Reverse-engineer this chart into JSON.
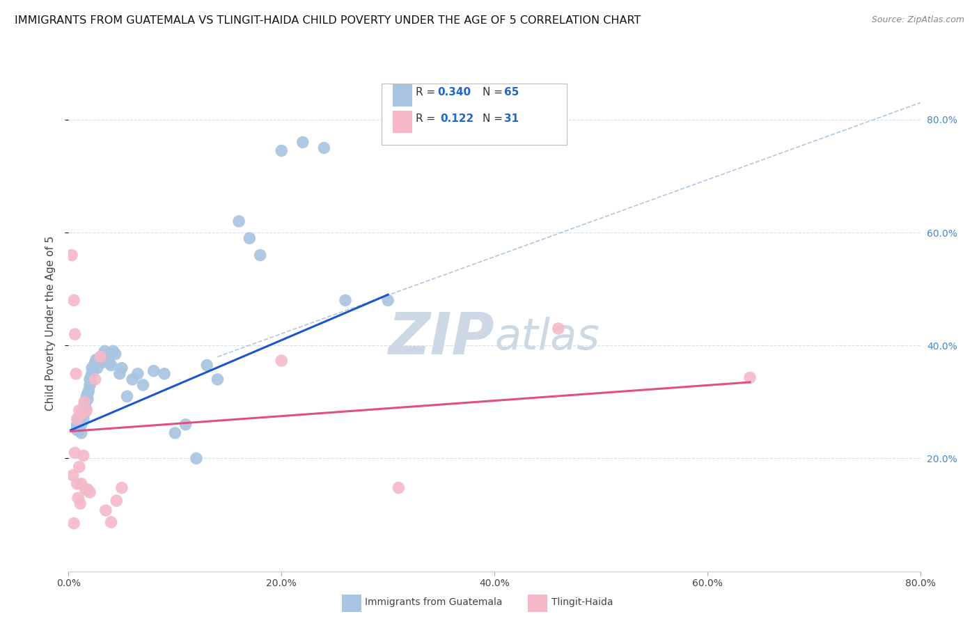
{
  "title": "IMMIGRANTS FROM GUATEMALA VS TLINGIT-HAIDA CHILD POVERTY UNDER THE AGE OF 5 CORRELATION CHART",
  "source": "Source: ZipAtlas.com",
  "ylabel": "Child Poverty Under the Age of 5",
  "xlim": [
    0.0,
    0.8
  ],
  "ylim": [
    0.0,
    0.88
  ],
  "xtick_vals": [
    0.0,
    0.2,
    0.4,
    0.6,
    0.8
  ],
  "xtick_labels": [
    "0.0%",
    "20.0%",
    "40.0%",
    "60.0%",
    "80.0%"
  ],
  "ytick_vals": [
    0.2,
    0.4,
    0.6,
    0.8
  ],
  "ytick_labels": [
    "20.0%",
    "40.0%",
    "60.0%",
    "80.0%"
  ],
  "scatter_blue_color": "#a8c4e0",
  "scatter_pink_color": "#f4b8c8",
  "line_blue_color": "#1a56cc",
  "line_pink_color": "#e05080",
  "line_dashed_color": "#aec8de",
  "blue_points_x": [
    0.008,
    0.008,
    0.008,
    0.009,
    0.01,
    0.01,
    0.011,
    0.012,
    0.012,
    0.013,
    0.014,
    0.014,
    0.015,
    0.015,
    0.016,
    0.016,
    0.017,
    0.018,
    0.018,
    0.019,
    0.02,
    0.02,
    0.021,
    0.021,
    0.022,
    0.022,
    0.023,
    0.024,
    0.025,
    0.026,
    0.027,
    0.028,
    0.029,
    0.03,
    0.031,
    0.032,
    0.033,
    0.034,
    0.035,
    0.036,
    0.038,
    0.04,
    0.042,
    0.044,
    0.048,
    0.05,
    0.055,
    0.06,
    0.065,
    0.07,
    0.08,
    0.09,
    0.1,
    0.11,
    0.12,
    0.13,
    0.14,
    0.16,
    0.17,
    0.18,
    0.2,
    0.22,
    0.24,
    0.26,
    0.3
  ],
  "blue_points_y": [
    0.26,
    0.255,
    0.25,
    0.265,
    0.27,
    0.25,
    0.275,
    0.26,
    0.245,
    0.28,
    0.285,
    0.27,
    0.295,
    0.28,
    0.3,
    0.29,
    0.31,
    0.305,
    0.315,
    0.32,
    0.33,
    0.34,
    0.345,
    0.335,
    0.35,
    0.36,
    0.355,
    0.365,
    0.37,
    0.375,
    0.36,
    0.37,
    0.375,
    0.38,
    0.375,
    0.37,
    0.385,
    0.39,
    0.38,
    0.375,
    0.37,
    0.365,
    0.39,
    0.385,
    0.35,
    0.36,
    0.31,
    0.34,
    0.35,
    0.33,
    0.355,
    0.35,
    0.245,
    0.26,
    0.2,
    0.365,
    0.34,
    0.62,
    0.59,
    0.56,
    0.745,
    0.76,
    0.75,
    0.48,
    0.48
  ],
  "pink_points_x": [
    0.003,
    0.004,
    0.005,
    0.005,
    0.006,
    0.006,
    0.007,
    0.008,
    0.008,
    0.009,
    0.01,
    0.01,
    0.011,
    0.012,
    0.013,
    0.014,
    0.015,
    0.016,
    0.017,
    0.018,
    0.02,
    0.025,
    0.03,
    0.035,
    0.04,
    0.045,
    0.05,
    0.2,
    0.31,
    0.46,
    0.64
  ],
  "pink_points_y": [
    0.56,
    0.17,
    0.085,
    0.48,
    0.42,
    0.21,
    0.35,
    0.27,
    0.155,
    0.13,
    0.285,
    0.185,
    0.12,
    0.155,
    0.28,
    0.205,
    0.3,
    0.145,
    0.285,
    0.145,
    0.14,
    0.34,
    0.38,
    0.108,
    0.087,
    0.125,
    0.148,
    0.373,
    0.148,
    0.43,
    0.343
  ],
  "blue_line_x": [
    0.002,
    0.3
  ],
  "blue_line_y": [
    0.25,
    0.49
  ],
  "pink_line_x": [
    0.002,
    0.64
  ],
  "pink_line_y": [
    0.248,
    0.335
  ],
  "dashed_line_x": [
    0.14,
    0.8
  ],
  "dashed_line_y": [
    0.38,
    0.83
  ],
  "grid_color": "#d8dfe8",
  "background_color": "#ffffff",
  "title_fontsize": 11.5,
  "source_fontsize": 9,
  "ylabel_fontsize": 11,
  "tick_fontsize": 10,
  "watermark_color": "#cdd8e5",
  "watermark_fontsize": 60,
  "legend_blue_r": "0.340",
  "legend_blue_n": "65",
  "legend_pink_r": "0.122",
  "legend_pink_n": "31"
}
